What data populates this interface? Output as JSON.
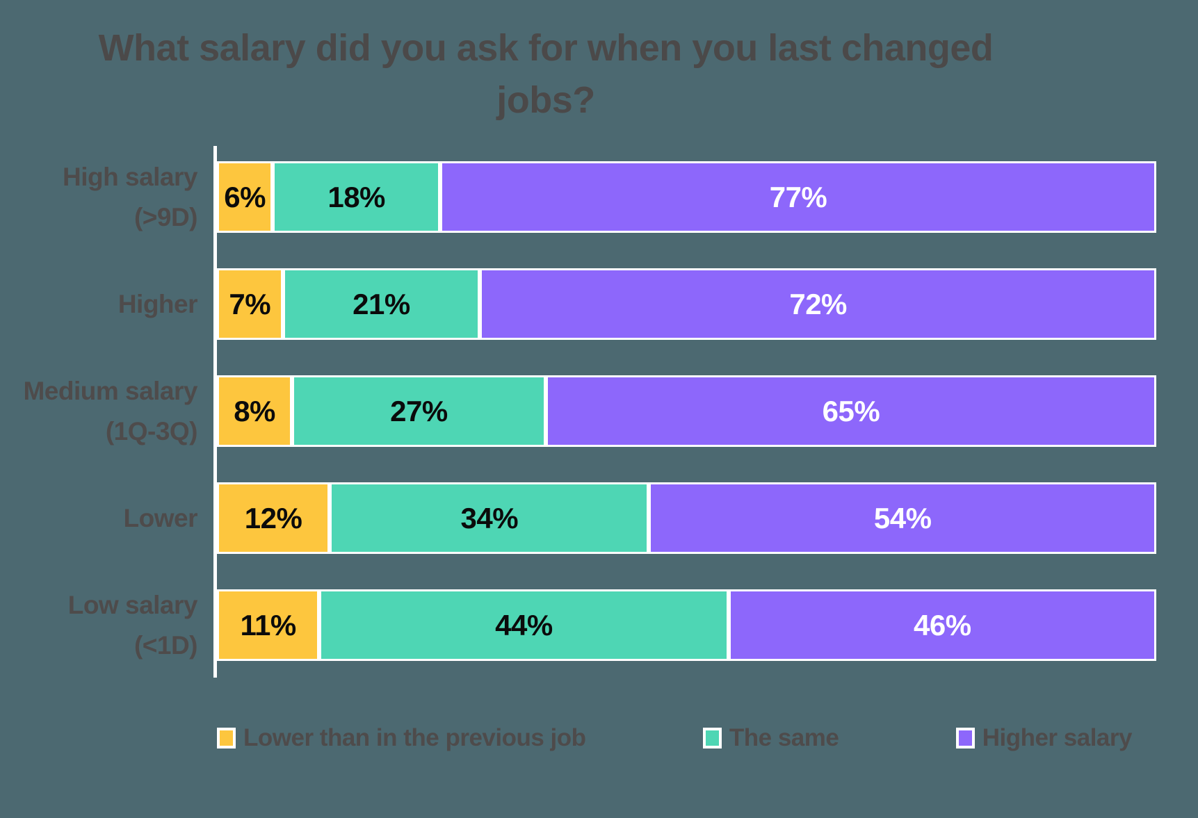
{
  "title": "What salary did you ask for when you last changed jobs?",
  "chart_data": {
    "type": "bar",
    "orientation": "horizontal",
    "stacked": true,
    "percent_stacked": true,
    "title": "What salary did you ask for when you last changed jobs?",
    "categories": [
      "High salary (>9D)",
      "Higher",
      "Medium salary (1Q-3Q)",
      "Lower",
      "Low salary (<1D)"
    ],
    "category_lines": [
      [
        "High salary",
        "(>9D)"
      ],
      [
        "Higher"
      ],
      [
        "Medium salary",
        "(1Q-3Q)"
      ],
      [
        "Lower"
      ],
      [
        "Low salary",
        "(<1D)"
      ]
    ],
    "series": [
      {
        "name": "Lower than in the previous job",
        "color": "#FDC63E",
        "label_color": "#0B0B0B",
        "values": [
          6,
          7,
          8,
          12,
          11
        ]
      },
      {
        "name": "The same",
        "color": "#4ED6B4",
        "label_color": "#0B0B0B",
        "values": [
          18,
          21,
          27,
          34,
          44
        ]
      },
      {
        "name": "Higher salary",
        "color": "#8D67FB",
        "label_color": "#FFFFFF",
        "values": [
          77,
          72,
          65,
          54,
          46
        ]
      }
    ],
    "value_suffix": "%",
    "xlabel": "",
    "ylabel": "",
    "xlim": [
      0,
      100
    ],
    "grid": false,
    "legend_position": "bottom",
    "axis_line_color": "#FFFFFF",
    "segment_border_color": "#FFFFFF"
  },
  "colors": {
    "background": "#4C6971",
    "title_text": "#4B4949",
    "label_text": "#4E4B4B"
  }
}
